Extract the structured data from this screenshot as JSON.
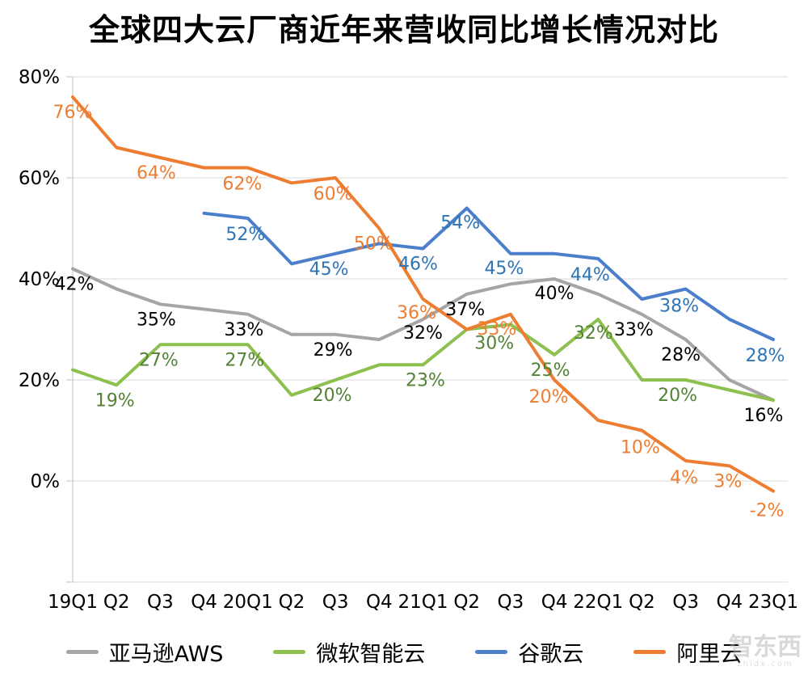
{
  "watermark": {
    "title": "智东西",
    "subtitle": "zhidx.com"
  },
  "chart_data": {
    "type": "line",
    "title": "全球四大云厂商近年来营收同比增长情况对比",
    "categories": [
      "19Q1",
      "Q2",
      "Q3",
      "Q4",
      "20Q1",
      "Q2",
      "Q3",
      "Q4",
      "21Q1",
      "Q2",
      "Q3",
      "Q4",
      "22Q1",
      "Q2",
      "Q3",
      "Q4",
      "23Q1"
    ],
    "y_axis": {
      "min": -20,
      "max": 80,
      "ticks": [
        80,
        60,
        40,
        20,
        0
      ],
      "tick_suffix": "%"
    },
    "grid": true,
    "legend_position": "bottom",
    "series": [
      {
        "name": "亚马逊AWS",
        "color": "#a5a5a5",
        "label_color": "#000000",
        "values": [
          42,
          38,
          35,
          34,
          33,
          29,
          29,
          28,
          32,
          37,
          39,
          40,
          37,
          33,
          28,
          20,
          16
        ],
        "point_labels": [
          {
            "i": 0,
            "text": "42%",
            "dx": 2,
            "dy": 26
          },
          {
            "i": 2,
            "text": "35%",
            "dx": -5,
            "dy": 26
          },
          {
            "i": 4,
            "text": "33%",
            "dx": -5,
            "dy": 26
          },
          {
            "i": 6,
            "text": "29%",
            "dx": -3,
            "dy": 26
          },
          {
            "i": 8,
            "text": "32%",
            "dx": 0,
            "dy": 24
          },
          {
            "i": 9,
            "text": "37%",
            "dx": -2,
            "dy": 26
          },
          {
            "i": 11,
            "text": "40%",
            "dx": 0,
            "dy": 25
          },
          {
            "i": 13,
            "text": "33%",
            "dx": -10,
            "dy": 26
          },
          {
            "i": 14,
            "text": "28%",
            "dx": -6,
            "dy": 26
          },
          {
            "i": 16,
            "text": "16%",
            "dx": -12,
            "dy": 26
          }
        ]
      },
      {
        "name": "微软智能云",
        "color": "#8dc04f",
        "label_color": "#538135",
        "values": [
          22,
          19,
          27,
          27,
          27,
          17,
          20,
          23,
          23,
          30,
          31,
          25,
          32,
          20,
          20,
          18,
          16
        ],
        "point_labels": [
          {
            "i": 1,
            "text": "19%",
            "dx": -2,
            "dy": 26
          },
          {
            "i": 2,
            "text": "27%",
            "dx": -2,
            "dy": 26
          },
          {
            "i": 4,
            "text": "27%",
            "dx": -4,
            "dy": 26
          },
          {
            "i": 6,
            "text": "20%",
            "dx": -4,
            "dy": 26
          },
          {
            "i": 8,
            "text": "23%",
            "dx": 3,
            "dy": 26
          },
          {
            "i": 9,
            "text": "30%",
            "dx": 34,
            "dy": 24
          },
          {
            "i": 11,
            "text": "25%",
            "dx": -5,
            "dy": 26
          },
          {
            "i": 12,
            "text": "32%",
            "dx": -6,
            "dy": 24
          },
          {
            "i": 14,
            "text": "20%",
            "dx": -10,
            "dy": 26
          }
        ]
      },
      {
        "name": "谷歌云",
        "color": "#4b7fcb",
        "label_color": "#2e75b6",
        "values": [
          null,
          null,
          null,
          53,
          52,
          43,
          45,
          47,
          46,
          54,
          45,
          45,
          44,
          36,
          38,
          32,
          28
        ],
        "point_labels": [
          {
            "i": 4,
            "text": "52%",
            "dx": -3,
            "dy": 27
          },
          {
            "i": 6,
            "text": "45%",
            "dx": -8,
            "dy": 26
          },
          {
            "i": 8,
            "text": "46%",
            "dx": -6,
            "dy": 26
          },
          {
            "i": 9,
            "text": "54%",
            "dx": -8,
            "dy": 25
          },
          {
            "i": 10,
            "text": "45%",
            "dx": -8,
            "dy": 25
          },
          {
            "i": 12,
            "text": "44%",
            "dx": -10,
            "dy": 27
          },
          {
            "i": 14,
            "text": "38%",
            "dx": -8,
            "dy": 28
          },
          {
            "i": 16,
            "text": "28%",
            "dx": -10,
            "dy": 27
          }
        ]
      },
      {
        "name": "阿里云",
        "color": "#ed7d31",
        "label_color": "#ed7d31",
        "values": [
          76,
          66,
          64,
          62,
          62,
          59,
          60,
          50,
          36,
          30,
          33,
          20,
          12,
          10,
          4,
          3,
          -2
        ],
        "point_labels": [
          {
            "i": 0,
            "text": "76%",
            "dx": 0,
            "dy": 26
          },
          {
            "i": 2,
            "text": "64%",
            "dx": -5,
            "dy": 26
          },
          {
            "i": 4,
            "text": "62%",
            "dx": -7,
            "dy": 27
          },
          {
            "i": 6,
            "text": "60%",
            "dx": -3,
            "dy": 27
          },
          {
            "i": 7,
            "text": "50%",
            "dx": -7,
            "dy": 26
          },
          {
            "i": 8,
            "text": "36%",
            "dx": -8,
            "dy": 24
          },
          {
            "i": 10,
            "text": "33%",
            "dx": -17,
            "dy": 25
          },
          {
            "i": 11,
            "text": "20%",
            "dx": -7,
            "dy": 28
          },
          {
            "i": 13,
            "text": "10%",
            "dx": -2,
            "dy": 28
          },
          {
            "i": 14,
            "text": "4%",
            "dx": -2,
            "dy": 28
          },
          {
            "i": 15,
            "text": "3%",
            "dx": -2,
            "dy": 26
          },
          {
            "i": 16,
            "text": "-2%",
            "dx": -8,
            "dy": 31
          }
        ]
      }
    ]
  }
}
